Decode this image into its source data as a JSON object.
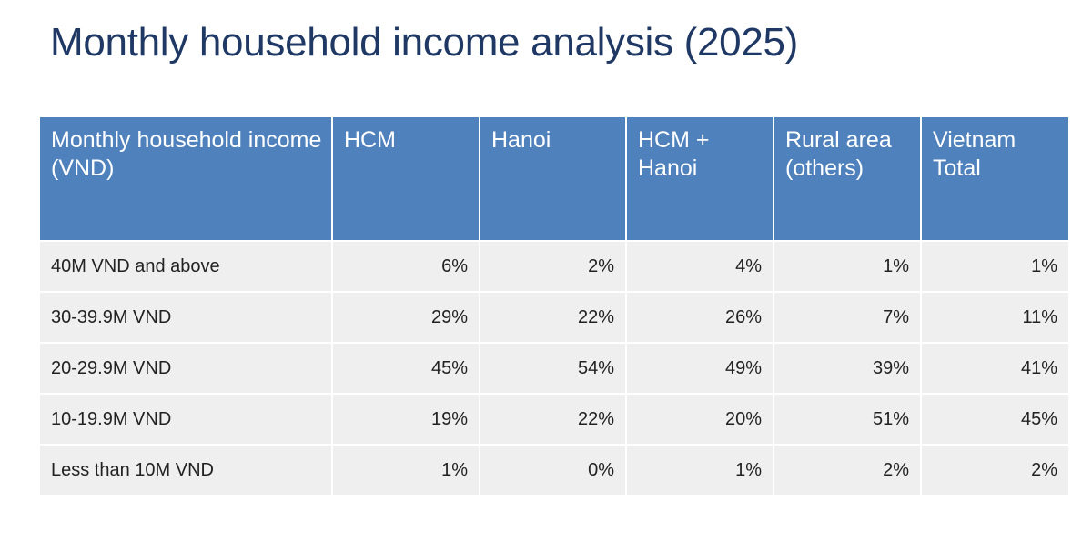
{
  "title": "Monthly household income analysis (2025)",
  "table": {
    "headers": [
      "Monthly household income (VND)",
      "HCM",
      "Hanoi",
      "HCM + Hanoi",
      "Rural area (others)",
      "Vietnam Total"
    ],
    "rows": [
      [
        "40M VND and above",
        "6%",
        "2%",
        "4%",
        "1%",
        "1%"
      ],
      [
        "30-39.9M VND",
        "29%",
        "22%",
        "26%",
        "7%",
        "11%"
      ],
      [
        "20-29.9M VND",
        "45%",
        "54%",
        "49%",
        "39%",
        "41%"
      ],
      [
        "10-19.9M VND",
        "19%",
        "22%",
        "20%",
        "51%",
        "45%"
      ],
      [
        "Less than 10M VND",
        "1%",
        "0%",
        "1%",
        "2%",
        "2%"
      ]
    ]
  }
}
